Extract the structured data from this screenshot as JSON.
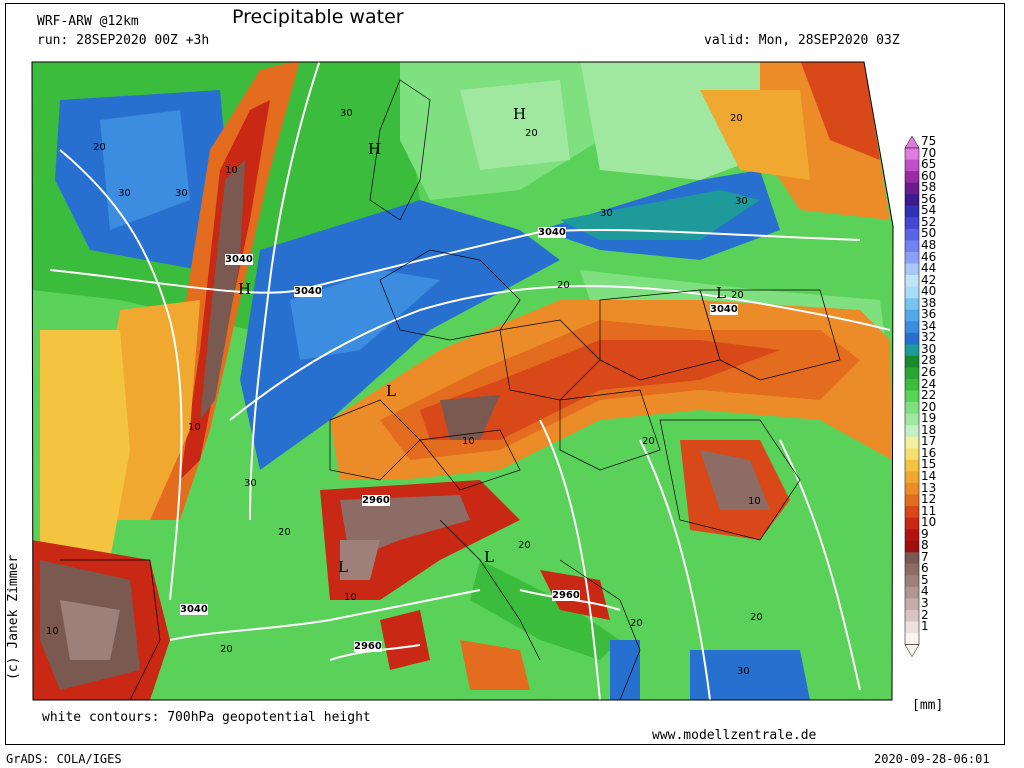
{
  "header": {
    "model": "WRF-ARW @12km",
    "title": "Precipitable water",
    "run": "run: 28SEP2020 00Z +3h",
    "valid": "valid: Mon, 28SEP2020 03Z"
  },
  "footer": {
    "note": "white contours: 700hPa geopotential height",
    "site": "www.modellzentrale.de",
    "grads": "GrADS: COLA/IGES",
    "timestamp": "2020-09-28-06:01",
    "unit": "[mm]",
    "copyright": "(c) Janek Zimmer"
  },
  "colorbar": {
    "levels": [
      "75",
      "70",
      "65",
      "60",
      "58",
      "56",
      "54",
      "52",
      "50",
      "48",
      "46",
      "44",
      "42",
      "40",
      "38",
      "36",
      "34",
      "32",
      "30",
      "28",
      "26",
      "24",
      "22",
      "20",
      "19",
      "18",
      "17",
      "16",
      "15",
      "14",
      "13",
      "12",
      "11",
      "10",
      "9",
      "8",
      "7",
      "6",
      "5",
      "4",
      "3",
      "2",
      "1"
    ],
    "colors": [
      "#e07ce0",
      "#c050c8",
      "#9a2aa8",
      "#6a1c8c",
      "#3c1a90",
      "#3232b4",
      "#4646d2",
      "#5a64e6",
      "#6e82f0",
      "#8aa0f4",
      "#a8c8f8",
      "#c0e6f8",
      "#a8dcf4",
      "#78c4f0",
      "#50a8e8",
      "#3c8ce0",
      "#2870d0",
      "#1e9a9a",
      "#1a8a2e",
      "#2aa432",
      "#3cbc3c",
      "#5ad25a",
      "#7ee07e",
      "#a0e8a0",
      "#c4f0c4",
      "#f0f0a0",
      "#f4e06e",
      "#f4c440",
      "#f0a830",
      "#ec8c28",
      "#e46c1e",
      "#d84818",
      "#c82814",
      "#b41410",
      "#a01010",
      "#7a5a50",
      "#8c6c64",
      "#9e807a",
      "#b09690",
      "#c4aca8",
      "#d8c4c0",
      "#ece0dc",
      "#f8f4f2"
    ]
  },
  "map": {
    "pressure_centers": [
      {
        "label": "H"
      },
      {
        "label": "H"
      },
      {
        "label": "H"
      },
      {
        "label": "L"
      },
      {
        "label": "L"
      },
      {
        "label": "L"
      },
      {
        "label": "L"
      }
    ],
    "contour_labels": [
      "3040",
      "3040",
      "3040",
      "3040",
      "2960",
      "2960",
      "2960",
      "3040"
    ],
    "value_labels": [
      "30",
      "30",
      "30",
      "30",
      "30",
      "20",
      "20",
      "20",
      "20",
      "20",
      "20",
      "20",
      "10",
      "10",
      "10",
      "10",
      "10",
      "10",
      "30",
      "20",
      "20",
      "20",
      "20",
      "30"
    ]
  }
}
